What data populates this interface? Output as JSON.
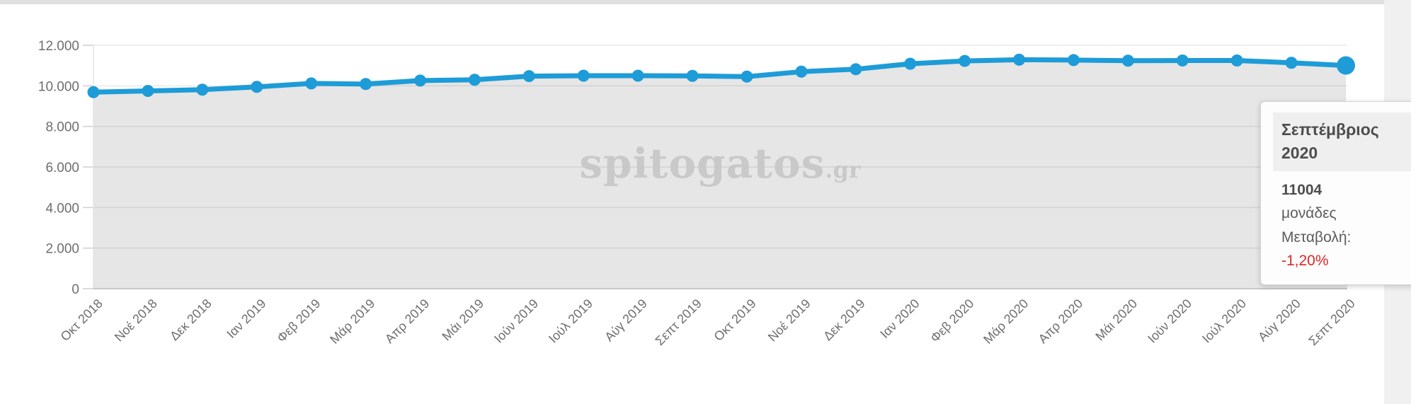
{
  "page": {
    "top_bar_color": "#e0e0e0",
    "right_strip_color": "#f0f0f0",
    "background": "#ffffff"
  },
  "watermark": {
    "main": "spitogatos",
    "suffix": ".gr",
    "color": "#c6c6c6"
  },
  "chart_data": {
    "type": "area",
    "title": "",
    "xlabel": "",
    "ylabel": "",
    "categories": [
      "Οκτ 2018",
      "Νοέ 2018",
      "Δεκ 2018",
      "Ιαν 2019",
      "Φεβ 2019",
      "Μάρ 2019",
      "Απρ 2019",
      "Μάι 2019",
      "Ιούν 2019",
      "Ιούλ 2019",
      "Αύγ 2019",
      "Σεπτ 2019",
      "Οκτ 2019",
      "Νοέ 2019",
      "Δεκ 2019",
      "Ιαν 2020",
      "Φεβ 2020",
      "Μάρ 2020",
      "Απρ 2020",
      "Μάι 2020",
      "Ιούν 2020",
      "Ιούλ 2020",
      "Αύγ 2020",
      "Σεπτ 2020"
    ],
    "series": [
      {
        "name": "μονάδες",
        "values": [
          9690,
          9750,
          9810,
          9950,
          10120,
          10090,
          10260,
          10300,
          10480,
          10500,
          10500,
          10490,
          10455,
          10700,
          10820,
          11090,
          11230,
          11290,
          11270,
          11240,
          11250,
          11250,
          11138,
          11004
        ]
      }
    ],
    "highlighted_index": 23,
    "ylim": [
      0,
      12000
    ],
    "ytick_step": 2000,
    "ytick_labels": [
      "0",
      "2.000",
      "4.000",
      "6.000",
      "8.000",
      "10.000",
      "12.000"
    ],
    "grid": true,
    "legend": "none",
    "line_color": "#1d9cd8",
    "fill_color": "#e6e6e6",
    "axis_label_color": "#6e6e6e"
  },
  "tooltip": {
    "title": "Σεπτέμβριος 2020",
    "value": "11004",
    "unit_label": "μονάδες",
    "change_label": "Μεταβολή:",
    "change_value": "-1,20%",
    "change_color": "#e02626"
  }
}
